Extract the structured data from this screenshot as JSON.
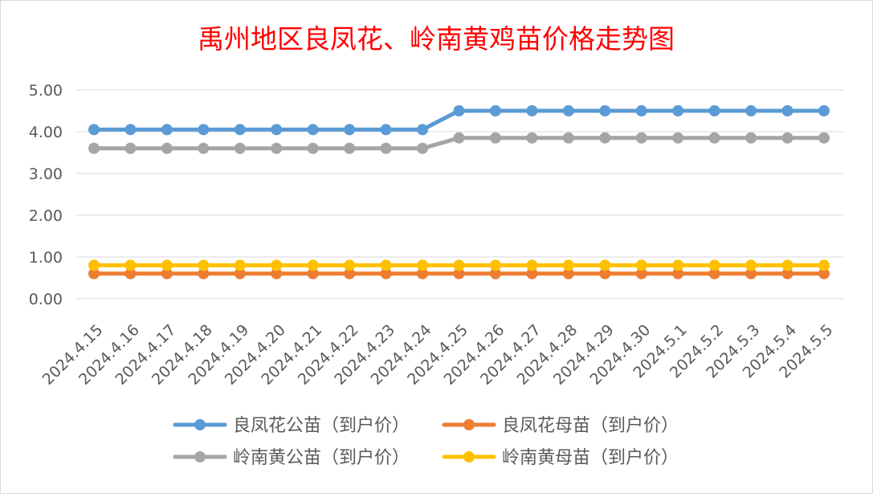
{
  "chart_data": {
    "type": "line",
    "title": "禹州地区良凤花、岭南黄鸡苗价格走势图",
    "xlabel": "",
    "ylabel": "",
    "ylim": [
      0,
      5
    ],
    "y_ticks": [
      "0.00",
      "1.00",
      "2.00",
      "3.00",
      "4.00",
      "5.00"
    ],
    "grid": true,
    "legend_position": "bottom",
    "categories": [
      "2024.4.15",
      "2024.4.16",
      "2024.4.17",
      "2024.4.18",
      "2024.4.19",
      "2024.4.20",
      "2024.4.21",
      "2024.4.22",
      "2024.4.23",
      "2024.4.24",
      "2024.4.25",
      "2024.4.26",
      "2024.4.27",
      "2024.4.28",
      "2024.4.29",
      "2024.4.30",
      "2024.5.1",
      "2024.5.2",
      "2024.5.3",
      "2024.5.4",
      "2024.5.5"
    ],
    "series": [
      {
        "name": "良凤花公苗（到户价）",
        "color": "#5B9BD5",
        "values": [
          4.05,
          4.05,
          4.05,
          4.05,
          4.05,
          4.05,
          4.05,
          4.05,
          4.05,
          4.05,
          4.5,
          4.5,
          4.5,
          4.5,
          4.5,
          4.5,
          4.5,
          4.5,
          4.5,
          4.5,
          4.5
        ]
      },
      {
        "name": "良凤花母苗（到户价）",
        "color": "#ED7D31",
        "values": [
          0.6,
          0.6,
          0.6,
          0.6,
          0.6,
          0.6,
          0.6,
          0.6,
          0.6,
          0.6,
          0.6,
          0.6,
          0.6,
          0.6,
          0.6,
          0.6,
          0.6,
          0.6,
          0.6,
          0.6,
          0.6
        ]
      },
      {
        "name": "岭南黄公苗（到户价）",
        "color": "#A5A5A5",
        "values": [
          3.6,
          3.6,
          3.6,
          3.6,
          3.6,
          3.6,
          3.6,
          3.6,
          3.6,
          3.6,
          3.85,
          3.85,
          3.85,
          3.85,
          3.85,
          3.85,
          3.85,
          3.85,
          3.85,
          3.85,
          3.85
        ]
      },
      {
        "name": "岭南黄母苗（到户价）",
        "color": "#FFC000",
        "values": [
          0.8,
          0.8,
          0.8,
          0.8,
          0.8,
          0.8,
          0.8,
          0.8,
          0.8,
          0.8,
          0.8,
          0.8,
          0.8,
          0.8,
          0.8,
          0.8,
          0.8,
          0.8,
          0.8,
          0.8,
          0.8
        ]
      }
    ],
    "colors": {
      "title": "#FF0000",
      "axis_text": "#595959",
      "gridline": "#D9D9D9"
    }
  }
}
